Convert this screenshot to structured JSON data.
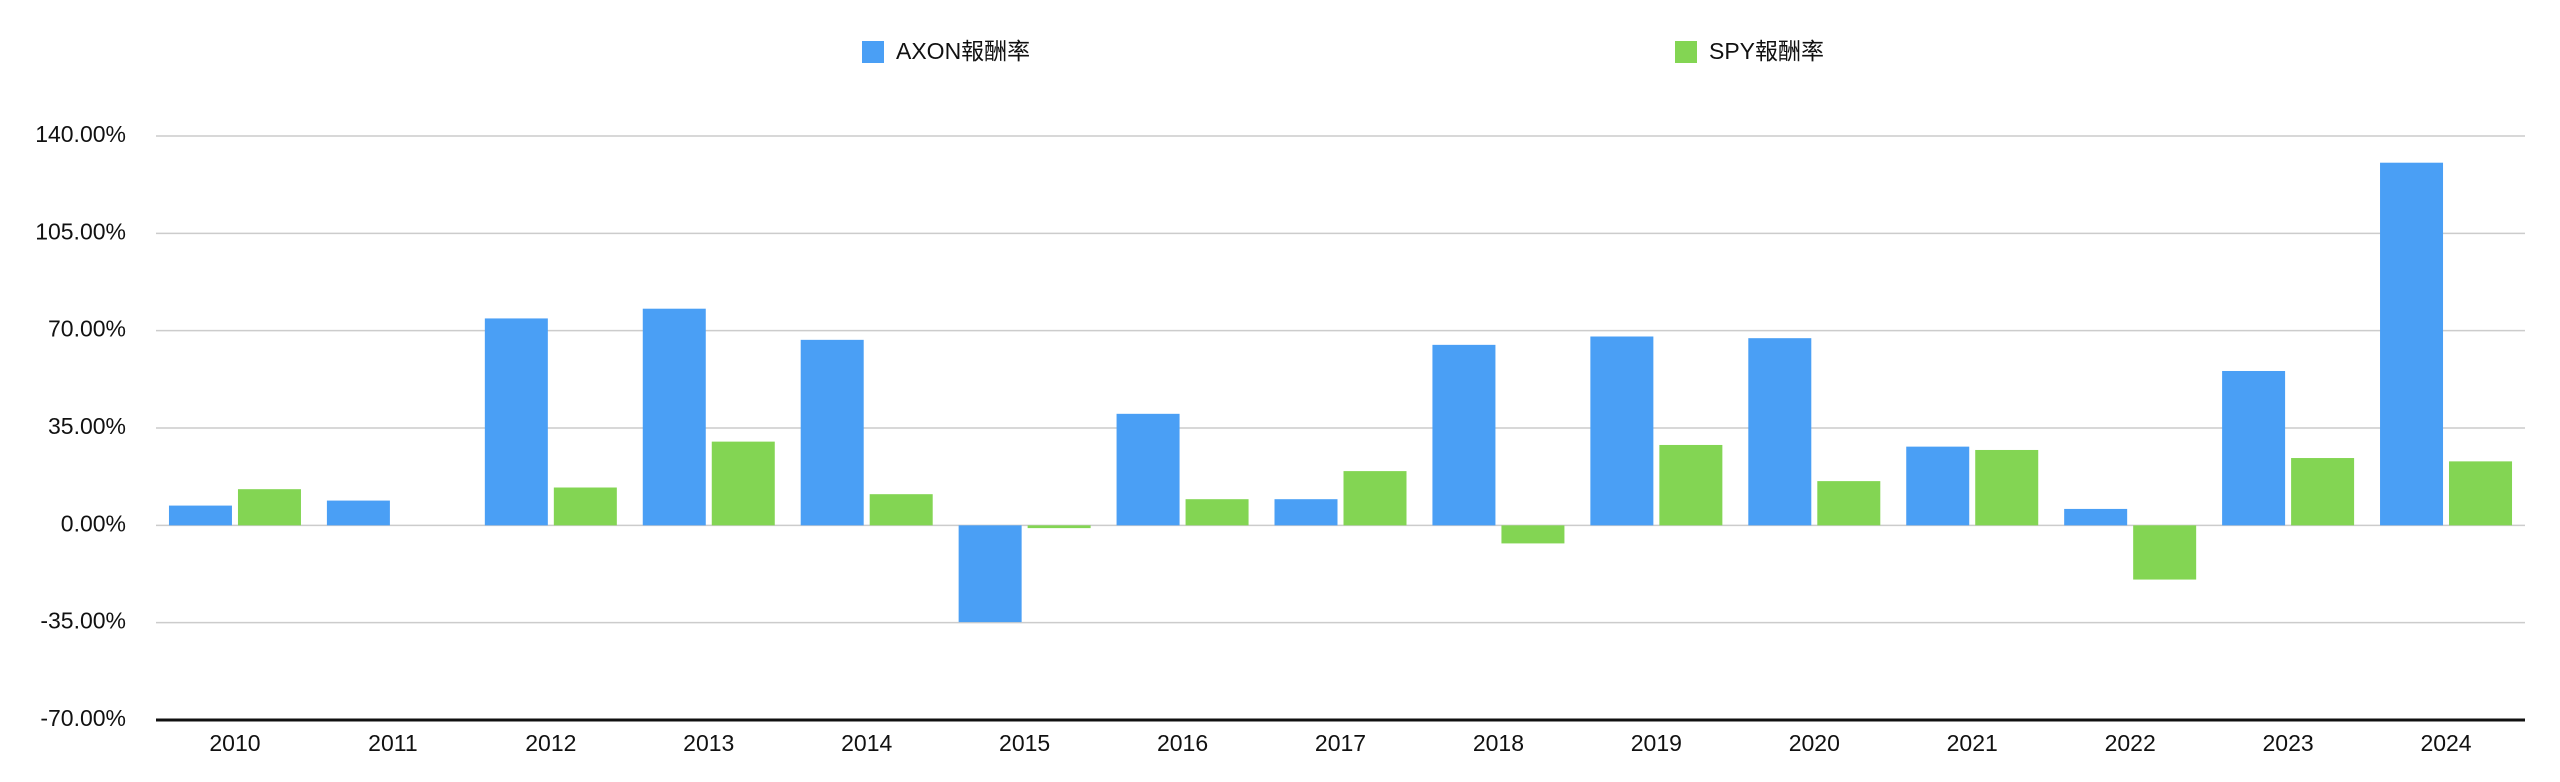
{
  "chart_data": {
    "type": "bar",
    "categories": [
      "2010",
      "2011",
      "2012",
      "2013",
      "2014",
      "2015",
      "2016",
      "2017",
      "2018",
      "2019",
      "2020",
      "2021",
      "2022",
      "2023",
      "2024"
    ],
    "series": [
      {
        "name": "AXON報酬率",
        "color": "#4a9ff5",
        "values": [
          7.1,
          8.9,
          74.4,
          77.9,
          66.7,
          -34.8,
          40.1,
          9.4,
          64.9,
          67.9,
          67.3,
          28.3,
          5.9,
          55.5,
          130.4
        ]
      },
      {
        "name": "SPY報酬率",
        "color": "#83d553",
        "values": [
          13,
          0,
          13.6,
          30.1,
          11.2,
          -1,
          9.4,
          19.5,
          -6.5,
          28.9,
          15.9,
          27.1,
          -19.5,
          24.2,
          23
        ]
      }
    ],
    "ylim": [
      -70,
      140
    ],
    "yticks": [
      {
        "value": -70,
        "label": "-70.00%"
      },
      {
        "value": -35,
        "label": "-35.00%"
      },
      {
        "value": 0,
        "label": "0.00%"
      },
      {
        "value": 35,
        "label": "35.00%"
      },
      {
        "value": 70,
        "label": "70.00%"
      },
      {
        "value": 105,
        "label": "105.00%"
      },
      {
        "value": 140,
        "label": "140.00%"
      }
    ],
    "grid": true,
    "legend": "top"
  }
}
